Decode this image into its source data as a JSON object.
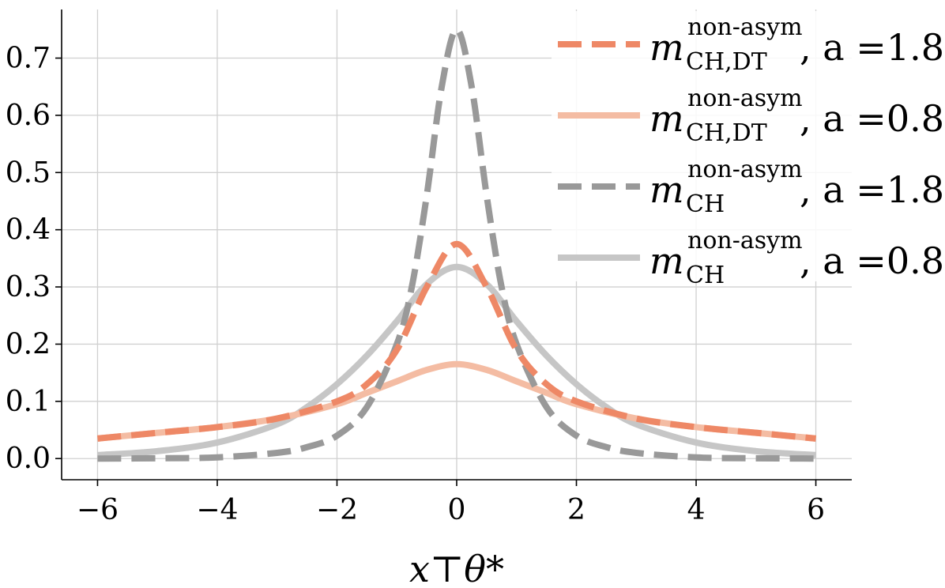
{
  "chart_data": {
    "type": "line",
    "xlabel": "x⊤θ*",
    "ylabel": "",
    "xlim": [
      -6.6,
      6.6
    ],
    "ylim": [
      -0.037,
      0.785
    ],
    "xticks": [
      -6,
      -4,
      -2,
      0,
      2,
      4,
      6
    ],
    "xtick_labels": [
      "−6",
      "−4",
      "−2",
      "0",
      "2",
      "4",
      "6"
    ],
    "yticks": [
      0.0,
      0.1,
      0.2,
      0.3,
      0.4,
      0.5,
      0.6,
      0.7
    ],
    "ytick_labels": [
      "0.0",
      "0.1",
      "0.2",
      "0.3",
      "0.4",
      "0.5",
      "0.6",
      "0.7"
    ],
    "grid": true,
    "legend_position": "top-right",
    "series": [
      {
        "name": "m_CH,DT^non-asym, a =1.8",
        "label_main": "m",
        "label_sup": "non-asym",
        "label_sub": "CH,DT",
        "label_rest": ", a =",
        "a": "1.8",
        "color": "#ee8866",
        "style": "dashed",
        "x": [
          -6,
          -5,
          -4,
          -3,
          -2,
          -1.5,
          -1,
          -0.5,
          0,
          0.5,
          1,
          1.5,
          2,
          3,
          4,
          5,
          6
        ],
        "values": [
          0.035,
          0.045,
          0.055,
          0.07,
          0.1,
          0.13,
          0.19,
          0.3,
          0.375,
          0.3,
          0.19,
          0.13,
          0.1,
          0.07,
          0.055,
          0.045,
          0.035
        ]
      },
      {
        "name": "m_CH,DT^non-asym, a =0.8",
        "label_main": "m",
        "label_sup": "non-asym",
        "label_sub": "CH,DT",
        "label_rest": ", a =",
        "a": "0.8",
        "color": "#f4bca3",
        "style": "solid",
        "x": [
          -6,
          -5,
          -4,
          -3,
          -2,
          -1.5,
          -1,
          -0.5,
          0,
          0.5,
          1,
          1.5,
          2,
          3,
          4,
          5,
          6
        ],
        "values": [
          0.035,
          0.045,
          0.055,
          0.07,
          0.095,
          0.115,
          0.135,
          0.155,
          0.165,
          0.155,
          0.135,
          0.115,
          0.095,
          0.07,
          0.055,
          0.045,
          0.035
        ]
      },
      {
        "name": "m_CH^non-asym, a =1.8",
        "label_main": "m",
        "label_sup": "non-asym",
        "label_sub": "CH",
        "label_rest": ", a =",
        "a": "1.8",
        "color": "#999999",
        "style": "dashed",
        "x": [
          -6,
          -5,
          -4,
          -3,
          -2.5,
          -2,
          -1.5,
          -1,
          -0.75,
          -0.5,
          -0.25,
          0,
          0.25,
          0.5,
          0.75,
          1,
          1.5,
          2,
          2.5,
          3,
          4,
          5,
          6
        ],
        "values": [
          0.0,
          0.0005,
          0.002,
          0.01,
          0.02,
          0.04,
          0.09,
          0.2,
          0.3,
          0.46,
          0.65,
          0.75,
          0.65,
          0.46,
          0.3,
          0.2,
          0.09,
          0.04,
          0.02,
          0.01,
          0.002,
          0.0005,
          0.0
        ]
      },
      {
        "name": "m_CH^non-asym, a =0.8",
        "label_main": "m",
        "label_sup": "non-asym",
        "label_sub": "CH",
        "label_rest": ", a =",
        "a": "0.8",
        "color": "#c6c6c6",
        "style": "solid",
        "x": [
          -6,
          -5,
          -4,
          -3,
          -2.5,
          -2,
          -1.5,
          -1,
          -0.5,
          0,
          0.5,
          1,
          1.5,
          2,
          2.5,
          3,
          4,
          5,
          6
        ],
        "values": [
          0.006,
          0.013,
          0.028,
          0.06,
          0.09,
          0.13,
          0.18,
          0.24,
          0.305,
          0.335,
          0.305,
          0.24,
          0.18,
          0.13,
          0.09,
          0.06,
          0.028,
          0.013,
          0.006
        ]
      }
    ]
  }
}
